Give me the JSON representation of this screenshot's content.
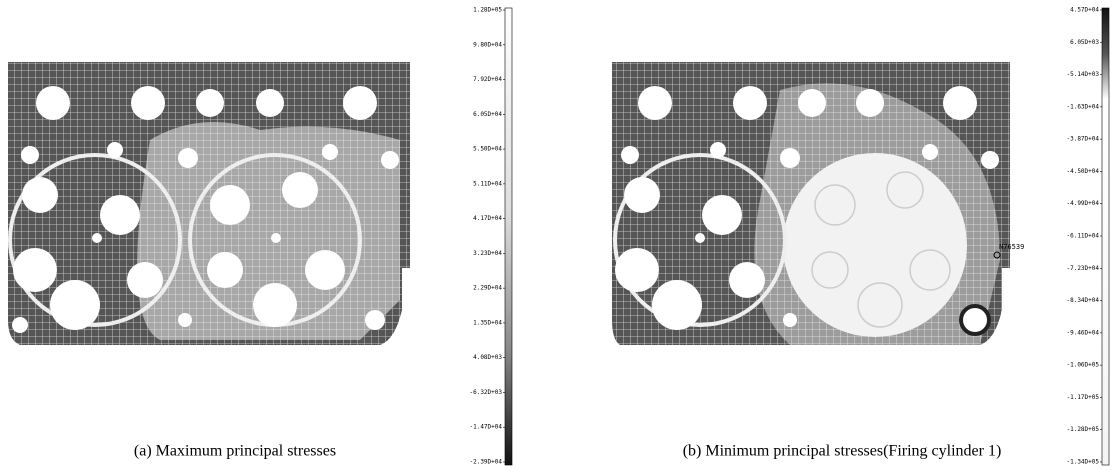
{
  "panels": [
    {
      "caption": "(a) Maximum principal stresses",
      "scale_labels": [
        "1.28D+05",
        "9.80D+04",
        "7.92D+04",
        "6.05D+04",
        "5.50D+04",
        "5.11D+04",
        "4.17D+04",
        "3.23D+04",
        "2.29D+04",
        "1.35D+04",
        "4.08D+03",
        "-6.32D+03",
        "-1.47D+04",
        "-2.39D+04"
      ]
    },
    {
      "caption": "(b) Minimum principal stresses(Firing cylinder 1)",
      "node_label": "N76539",
      "scale_labels": [
        "4.57D+04",
        "6.05D+03",
        "-5.14D+03",
        "-1.63D+04",
        "-3.87D+04",
        "-4.50D+04",
        "-4.99D+04",
        "-6.11D+04",
        "-7.23D+04",
        "-8.34D+04",
        "-9.46D+04",
        "-1.06D+05",
        "-1.17D+05",
        "-1.28D+05",
        "-1.34D+05"
      ]
    }
  ]
}
